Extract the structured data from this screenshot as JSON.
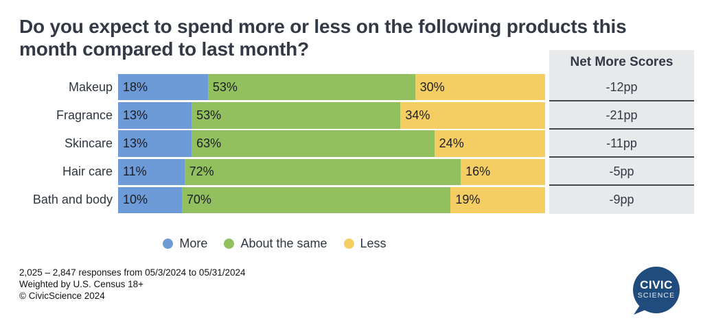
{
  "title": "Do you expect to spend more or less on the following products this month compared to last month?",
  "chart_data": {
    "type": "bar",
    "stacked": true,
    "orientation": "horizontal",
    "title": "Do you expect to spend more or less on the following products this month compared to last month?",
    "categories": [
      "Makeup",
      "Fragrance",
      "Skincare",
      "Hair care",
      "Bath and body"
    ],
    "series": [
      {
        "name": "More",
        "color": "#6C9BD7",
        "values": [
          18,
          13,
          13,
          11,
          10
        ]
      },
      {
        "name": "About the same",
        "color": "#93C05F",
        "values": [
          53,
          53,
          63,
          72,
          70
        ]
      },
      {
        "name": "Less",
        "color": "#F5CE63",
        "values": [
          30,
          34,
          24,
          16,
          19
        ]
      }
    ],
    "value_suffix": "%",
    "bar_labels_visible": true,
    "legend_position": "bottom",
    "net_scores": {
      "header": "Net More Scores",
      "values": [
        "-12pp",
        "-21pp",
        "-11pp",
        "-5pp",
        "-9pp"
      ]
    }
  },
  "footer": {
    "lines": [
      "2,025 – 2,847 responses from 05/3/2024 to 05/31/2024",
      "Weighted by U.S. Census 18+",
      "© CivicScience 2024"
    ]
  },
  "logo": {
    "line1": "CIVIC",
    "line2": "SCIENCE",
    "color": "#1F4B7D"
  },
  "colors": {
    "background": "#FFFFFF",
    "title_text": "#333A46",
    "panel_background": "#E7E9EB",
    "panel_divider": "#41474F",
    "bar_label_text": "#1A1D23"
  }
}
